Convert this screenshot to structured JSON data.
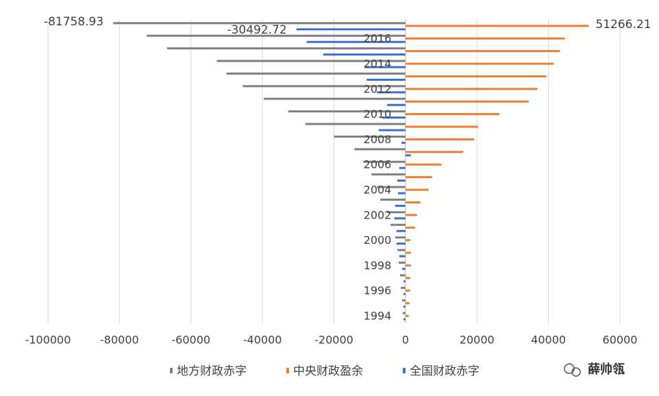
{
  "chart_data": {
    "type": "hbar",
    "categories": [
      "1994",
      null,
      "1996",
      null,
      "1998",
      null,
      "2000",
      null,
      "2002",
      null,
      "2004",
      null,
      "2006",
      null,
      "2008",
      null,
      "2010",
      null,
      "2012",
      null,
      "2014",
      null,
      "2016",
      null
    ],
    "series": [
      {
        "name": "地方财政赤字",
        "color": "#7f7f7f",
        "values": [
          -762,
          -952,
          -1333,
          -1524,
          -1905,
          -2286,
          -2857,
          -4190,
          -5143,
          -7048,
          -8000,
          -9524,
          -11810,
          -14286,
          -20000,
          -28000,
          -32762,
          -39619,
          -45524,
          -50095,
          -52762,
          -66667,
          -72380,
          -81758.93
        ],
        "value_labels": [
          null,
          null,
          null,
          null,
          null,
          null,
          null,
          null,
          null,
          null,
          null,
          null,
          null,
          null,
          null,
          null,
          null,
          null,
          null,
          null,
          null,
          null,
          null,
          "-81758.93"
        ]
      },
      {
        "name": "中央财政盈余",
        "color": "#ed7d31",
        "values": [
          952,
          1143,
          1333,
          1333,
          1524,
          1524,
          1333,
          2667,
          3238,
          4190,
          6476,
          7429,
          10095,
          16190,
          19238,
          20381,
          26286,
          34476,
          36952,
          39429,
          41524,
          43238,
          44571,
          51266.21
        ],
        "value_labels": [
          null,
          null,
          null,
          null,
          null,
          null,
          null,
          null,
          null,
          null,
          null,
          null,
          null,
          null,
          null,
          null,
          null,
          null,
          null,
          null,
          null,
          null,
          null,
          "51266.21"
        ]
      },
      {
        "name": "全国财政赤字",
        "color": "#3b6fd4",
        "values": [
          -570,
          -580,
          -530,
          -580,
          -900,
          -1700,
          -2500,
          -2500,
          -3100,
          -2900,
          -2100,
          -2300,
          -1700,
          1500,
          -1100,
          -7500,
          -6500,
          -5143,
          -8000,
          -10857,
          -11429,
          -23048,
          -27619,
          -30492.72
        ],
        "value_labels": [
          null,
          null,
          null,
          null,
          null,
          null,
          null,
          null,
          null,
          null,
          null,
          null,
          null,
          null,
          null,
          null,
          null,
          null,
          null,
          null,
          null,
          null,
          null,
          "-30492.72"
        ]
      }
    ],
    "xlim": [
      -100000,
      60000
    ],
    "xticks": [
      -100000,
      -80000,
      -60000,
      -40000,
      -20000,
      0,
      20000,
      40000,
      60000
    ],
    "grid": true,
    "legend": "bottom",
    "watermark": "薛帅瓴"
  }
}
